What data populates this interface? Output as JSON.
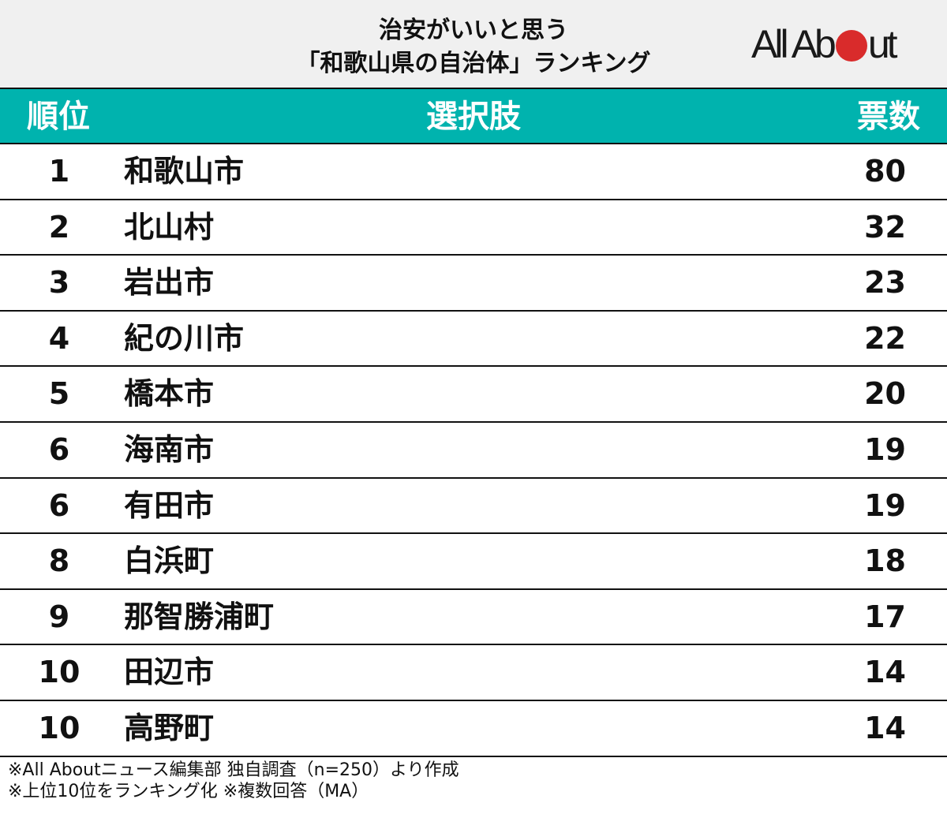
{
  "header": {
    "title_line1": "治安がいいと思う",
    "title_line2": "「和歌山県の自治体」ランキング",
    "logo": {
      "text_before": "All Ab",
      "text_after": "ut",
      "dot_color": "#d92b2b"
    }
  },
  "table": {
    "header_color": "#00b3ae",
    "columns": {
      "rank": "順位",
      "choice": "選択肢",
      "votes": "票数"
    },
    "rows": [
      {
        "rank": "1",
        "name": "和歌山市",
        "votes": "80"
      },
      {
        "rank": "2",
        "name": "北山村",
        "votes": "32"
      },
      {
        "rank": "3",
        "name": "岩出市",
        "votes": "23"
      },
      {
        "rank": "4",
        "name": "紀の川市",
        "votes": "22"
      },
      {
        "rank": "5",
        "name": "橋本市",
        "votes": "20"
      },
      {
        "rank": "6",
        "name": "海南市",
        "votes": "19"
      },
      {
        "rank": "6",
        "name": "有田市",
        "votes": "19"
      },
      {
        "rank": "8",
        "name": "白浜町",
        "votes": "18"
      },
      {
        "rank": "9",
        "name": "那智勝浦町",
        "votes": "17"
      },
      {
        "rank": "10",
        "name": "田辺市",
        "votes": "14"
      },
      {
        "rank": "10",
        "name": "高野町",
        "votes": "14"
      }
    ]
  },
  "footer": {
    "note1": "※All Aboutニュース編集部 独自調査（n=250）より作成",
    "note2": "※上位10位をランキング化 ※複数回答（MA）"
  },
  "chart_data": {
    "type": "table",
    "title": "治安がいいと思う「和歌山県の自治体」ランキング",
    "columns": [
      "順位",
      "選択肢",
      "票数"
    ],
    "categories": [
      "和歌山市",
      "北山村",
      "岩出市",
      "紀の川市",
      "橋本市",
      "海南市",
      "有田市",
      "白浜町",
      "那智勝浦町",
      "田辺市",
      "高野町"
    ],
    "ranks": [
      1,
      2,
      3,
      4,
      5,
      6,
      6,
      8,
      9,
      10,
      10
    ],
    "values": [
      80,
      32,
      23,
      22,
      20,
      19,
      19,
      18,
      17,
      14,
      14
    ],
    "notes": [
      "※All Aboutニュース編集部 独自調査（n=250）より作成",
      "※上位10位をランキング化 ※複数回答（MA）"
    ]
  }
}
